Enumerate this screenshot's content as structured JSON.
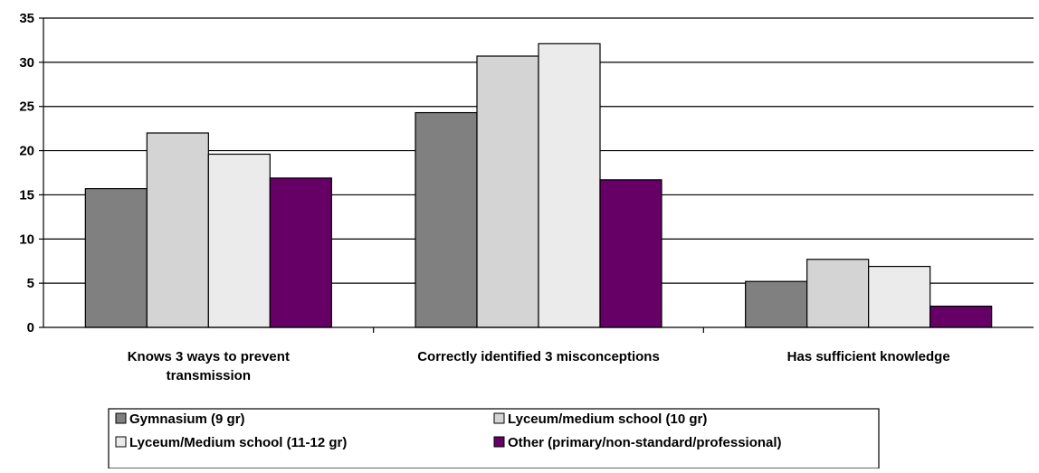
{
  "chart_data": {
    "type": "bar",
    "title": "",
    "xlabel": "",
    "ylabel": "",
    "categories": [
      [
        "Knows 3 ways to prevent",
        "transmission"
      ],
      [
        "Correctly identified 3 misconceptions"
      ],
      [
        "Has sufficient knowledge"
      ]
    ],
    "series": [
      {
        "name": "Gymnasium (9 gr)",
        "color": "#808080",
        "values": [
          15.7,
          24.3,
          5.2
        ]
      },
      {
        "name": "Lyceum/medium school (10 gr)",
        "color": "#d4d4d4",
        "values": [
          22.0,
          30.7,
          7.7
        ]
      },
      {
        "name": "Lyceum/Medium school (11-12 gr)",
        "color": "#ebebeb",
        "values": [
          19.6,
          32.1,
          6.9
        ]
      },
      {
        "name": "Other (primary/non-standard/professional)",
        "color": "#660066",
        "values": [
          16.9,
          16.7,
          2.4
        ]
      }
    ],
    "ylim": [
      0,
      35
    ],
    "yticks": [
      "0",
      "5",
      "10",
      "15",
      "20",
      "25",
      "30",
      "35"
    ],
    "grid": true,
    "legend_position": "bottom"
  }
}
